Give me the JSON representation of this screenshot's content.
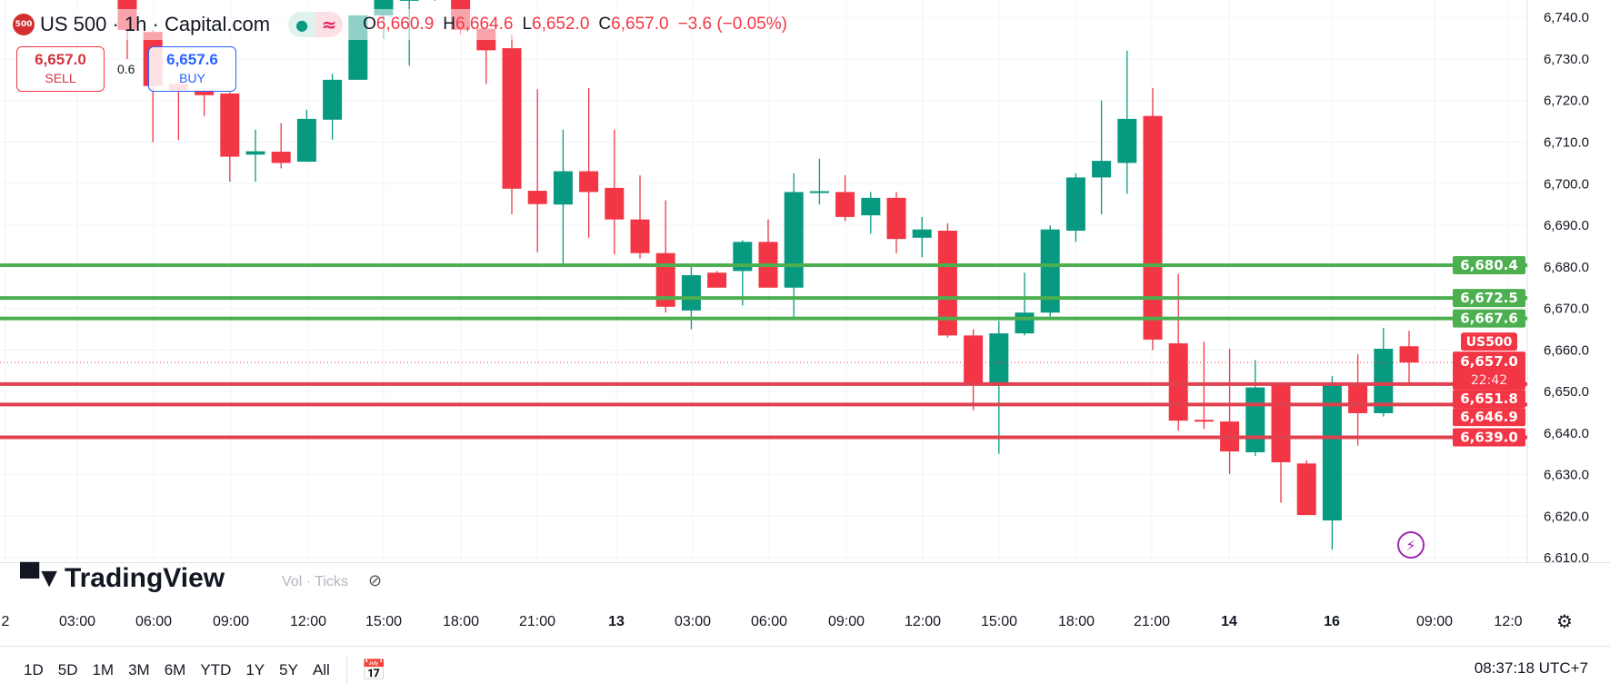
{
  "header": {
    "logo_text": "500",
    "title": "US 500 · 1h · Capital.com",
    "ohlc": {
      "o_label": "O",
      "o": "6,660.9",
      "h_label": "H",
      "h": "6,664.6",
      "l_label": "L",
      "l": "6,652.0",
      "c_label": "C",
      "c": "6,657.0",
      "change": "−3.6 (−0.05%)"
    },
    "status_icons": [
      "market-open-dot-icon",
      "delayed-data-icon"
    ]
  },
  "trade": {
    "sell_price": "6,657.0",
    "sell_label": "SELL",
    "spread": "0.6",
    "buy_price": "6,657.6",
    "buy_label": "BUY"
  },
  "watermark": {
    "logo": "TradingView",
    "indicator_label": "Vol · Ticks"
  },
  "colors": {
    "up": "#089981",
    "down": "#f23645",
    "support_line": "#4caf50",
    "resistance_line": "#e0414f",
    "accent": "#2962ff"
  },
  "chart_data": {
    "type": "candlestick",
    "symbol_label": "US500",
    "columns": [
      "open",
      "high",
      "low",
      "close"
    ],
    "candles": [
      [
        6744.5,
        6746,
        6730,
        6737
      ],
      [
        6736.5,
        6737,
        6710,
        6723.5
      ],
      [
        6724,
        6725,
        6710.5,
        6722.5
      ],
      [
        6722.5,
        6723,
        6716.3,
        6721.3
      ],
      [
        6721.7,
        6722,
        6700.5,
        6706.5
      ],
      [
        6707,
        6713,
        6700.5,
        6707.8
      ],
      [
        6707.7,
        6714.6,
        6703.7,
        6705
      ],
      [
        6705.3,
        6717.8,
        6705.3,
        6715.6
      ],
      [
        6715.4,
        6726.4,
        6710.6,
        6725
      ],
      [
        6725,
        6740.5,
        6725,
        6740.5
      ],
      [
        6740.5,
        6746,
        6734.8,
        6745
      ],
      [
        6744,
        6746,
        6728.4,
        6744.5
      ],
      [
        6745.5,
        6746,
        6744,
        6744.8
      ],
      [
        6744.5,
        6746,
        6736,
        6737
      ],
      [
        6737.3,
        6737.5,
        6724,
        6732.1
      ],
      [
        6732.6,
        6735.8,
        6692.7,
        6698.8
      ],
      [
        6698.3,
        6722.7,
        6683.5,
        6695.1
      ],
      [
        6695,
        6713,
        6680,
        6703
      ],
      [
        6703,
        6723,
        6687,
        6698
      ],
      [
        6699,
        6713,
        6683,
        6691.4
      ],
      [
        6691.4,
        6702,
        6682,
        6683.3
      ],
      [
        6683.3,
        6696,
        6669,
        6670.4
      ],
      [
        6669.5,
        6680,
        6665,
        6678
      ],
      [
        6678.6,
        6679,
        6675,
        6675
      ],
      [
        6679,
        6686.4,
        6670.7,
        6686
      ],
      [
        6686,
        6691.4,
        6675,
        6675
      ],
      [
        6675,
        6702.5,
        6667.5,
        6698
      ],
      [
        6698,
        6706,
        6695,
        6698.2
      ],
      [
        6698,
        6702,
        6691,
        6692
      ],
      [
        6692.4,
        6698,
        6688,
        6696.6
      ],
      [
        6696.6,
        6698,
        6683.3,
        6686.7
      ],
      [
        6687,
        6692,
        6682.3,
        6689
      ],
      [
        6688.7,
        6690.5,
        6663,
        6663.5
      ],
      [
        6663.5,
        6665,
        6645.5,
        6652
      ],
      [
        6651.4,
        6667,
        6635,
        6664
      ],
      [
        6664,
        6678.6,
        6663.5,
        6669
      ],
      [
        6669,
        6690,
        6668,
        6689
      ],
      [
        6688.7,
        6702.5,
        6686,
        6701.5
      ],
      [
        6701.5,
        6720,
        6692.6,
        6705.5
      ],
      [
        6705,
        6732,
        6697.6,
        6715.6
      ],
      [
        6716.3,
        6723,
        6660,
        6662.5
      ],
      [
        6661.6,
        6678.3,
        6640.6,
        6643
      ],
      [
        6643.2,
        6662,
        6641,
        6642.8
      ],
      [
        6642.8,
        6660.3,
        6630.2,
        6635.6
      ],
      [
        6635.4,
        6657.6,
        6634.5,
        6651
      ],
      [
        6651.7,
        6652,
        6623.3,
        6633
      ],
      [
        6632.7,
        6633.5,
        6620.3,
        6620.3
      ],
      [
        6619,
        6653.7,
        6612,
        6651.7
      ],
      [
        6651.7,
        6659,
        6637,
        6644.8
      ],
      [
        6644.8,
        6665.3,
        6644,
        6660.3
      ],
      [
        6660.9,
        6664.6,
        6652,
        6657
      ]
    ],
    "ylim": [
      6610,
      6744
    ],
    "y_ticks": [
      "6,740.0",
      "6,730.0",
      "6,720.0",
      "6,710.0",
      "6,700.0",
      "6,690.0",
      "6,680.0",
      "6,670.0",
      "6,660.0",
      "6,650.0",
      "6,640.0",
      "6,630.0",
      "6,620.0",
      "6,610.0"
    ],
    "x_ticks": [
      "2",
      "03:00",
      "06:00",
      "09:00",
      "12:00",
      "15:00",
      "18:00",
      "21:00",
      "13",
      "03:00",
      "06:00",
      "09:00",
      "12:00",
      "15:00",
      "18:00",
      "21:00",
      "14",
      "16",
      "09:00",
      "12:0"
    ],
    "support_lines": [
      {
        "value": 6680.4,
        "label": "6,680.4"
      },
      {
        "value": 6672.5,
        "label": "6,672.5"
      },
      {
        "value": 6667.6,
        "label": "6,667.6"
      }
    ],
    "resistance_lines": [
      {
        "value": 6651.8,
        "label": "6,651.8"
      },
      {
        "value": 6646.9,
        "label": "6,646.9"
      },
      {
        "value": 6639.0,
        "label": "6,639.0"
      }
    ],
    "last_price": {
      "value": 6657.0,
      "label": "6,657.0",
      "countdown": "22:42"
    },
    "grid": true
  },
  "bottom": {
    "ranges": [
      "1D",
      "5D",
      "1M",
      "3M",
      "6M",
      "YTD",
      "1Y",
      "5Y",
      "All"
    ],
    "clock": "08:37:18 UTC+7"
  }
}
